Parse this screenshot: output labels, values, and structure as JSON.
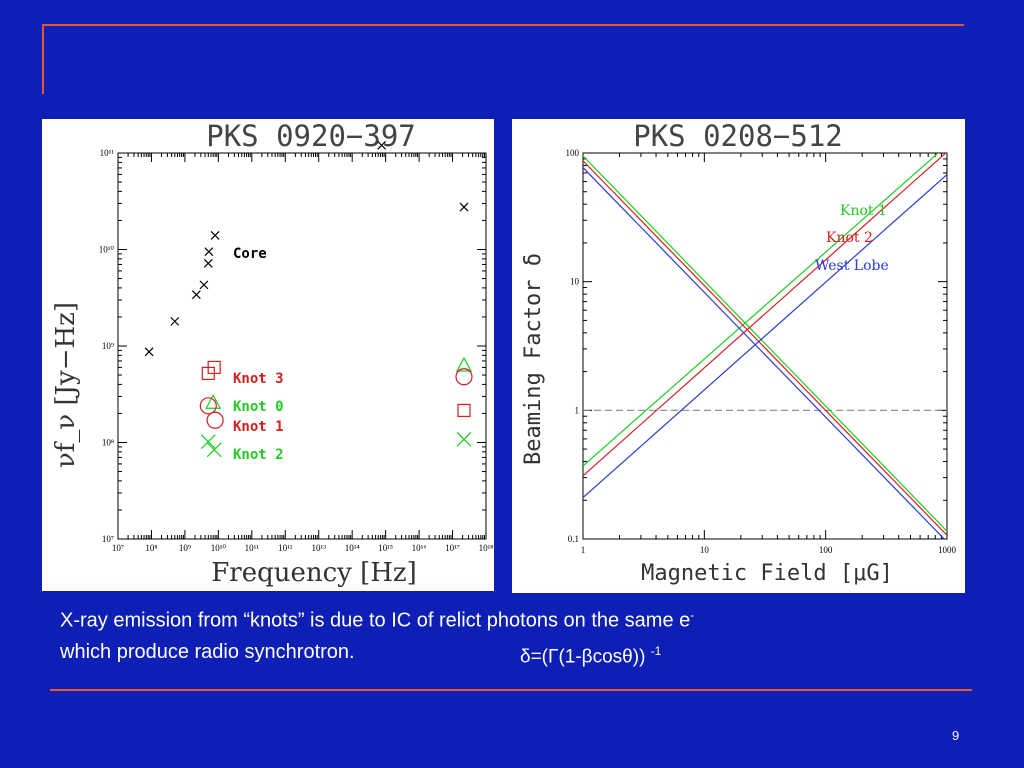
{
  "slide": {
    "caption_line1": "X-ray emission from “knots” is due to IC of relict photons on the same e",
    "caption_sup": "-",
    "caption_line2": "which produce radio synchrotron.",
    "formula": "δ=(Γ(1-βcosθ))",
    "formula_sup": "-1",
    "page_number": "9"
  },
  "colors": {
    "background": "#0d1fb5",
    "rule": "#e8552a",
    "red": "#d22020",
    "green": "#22cc22",
    "blue": "#2a3cd0"
  },
  "chart_data": [
    {
      "type": "scatter",
      "title": "PKS 0920−397",
      "xlabel": "Frequency [Hz]",
      "ylabel": "νf_ν [Jy−Hz]",
      "x_scale": "log",
      "y_scale": "log",
      "xlim": [
        10000000.0,
        1e+18
      ],
      "ylim": [
        10000000.0,
        100000000000.0
      ],
      "x_ticks": [
        "10⁷",
        "10⁸",
        "10⁹",
        "10¹⁰",
        "10¹¹",
        "10¹²",
        "10¹³",
        "10¹⁴",
        "10¹⁵",
        "10¹⁶",
        "10¹⁷",
        "10¹⁸"
      ],
      "y_ticks": [
        "10⁷",
        "10⁸",
        "10⁹",
        "10¹⁰",
        "10¹¹"
      ],
      "series": [
        {
          "name": "Core",
          "color": "#000000",
          "marker": "x",
          "points": [
            [
              85000000.0,
              870000000.0
            ],
            [
              500000000.0,
              1800000000.0
            ],
            [
              2200000000.0,
              3400000000.0
            ],
            [
              3700000000.0,
              4300000000.0
            ],
            [
              5000000000.0,
              7200000000.0
            ],
            [
              5200000000.0,
              9500000000.0
            ],
            [
              8000000000.0,
              14000000000.0
            ],
            [
              760000000000000.0,
              120000000000.0
            ],
            [
              2.2e+17,
              27500000000.0
            ]
          ]
        },
        {
          "name": "Knot 3",
          "color": "#d22020",
          "marker": "square",
          "points": [
            [
              5000000000.0,
              520000000.0
            ],
            [
              7500000000.0,
              600000000.0
            ],
            [
              2.2e+17,
              215000000.0
            ]
          ]
        },
        {
          "name": "Knot 0",
          "color": "#22cc22",
          "marker": "triangle",
          "points": [
            [
              7000000000.0,
              255000000.0
            ],
            [
              2.2e+17,
              620000000.0
            ]
          ]
        },
        {
          "name": "Knot 1",
          "color": "#d22020",
          "marker": "circle",
          "points": [
            [
              5000000000.0,
              240000000.0
            ],
            [
              8000000000.0,
              170000000.0
            ],
            [
              2.2e+17,
              480000000.0
            ]
          ]
        },
        {
          "name": "Knot 2",
          "color": "#22cc22",
          "marker": "x",
          "points": [
            [
              5000000000.0,
              102000000.0
            ],
            [
              7500000000.0,
              84000000.0
            ],
            [
              2.2e+17,
              108000000.0
            ]
          ]
        }
      ],
      "legend": {
        "placement": "inside-center",
        "entries": [
          "Core",
          "Knot 3",
          "Knot 0",
          "Knot 1",
          "Knot 2"
        ]
      }
    },
    {
      "type": "line",
      "title": "PKS 0208−512",
      "xlabel": "Magnetic Field [μG]",
      "ylabel": "Beaming Factor δ",
      "x_scale": "log",
      "y_scale": "log",
      "xlim": [
        1,
        1000
      ],
      "ylim": [
        0.1,
        100
      ],
      "x_ticks": [
        "1",
        "10",
        "100",
        "1000"
      ],
      "y_ticks": [
        "0.1",
        "1",
        "10",
        "100"
      ],
      "reference_line": {
        "y": 1,
        "style": "dashed"
      },
      "series": [
        {
          "name": "Knot 1",
          "color": "#22cc22",
          "lines": [
            [
              [
                1,
                0.37
              ],
              [
                1000,
                115
              ]
            ],
            [
              [
                1,
                95
              ],
              [
                1000,
                0.115
              ]
            ]
          ]
        },
        {
          "name": "Knot 2",
          "color": "#d22020",
          "lines": [
            [
              [
                1,
                0.31
              ],
              [
                1000,
                102
              ]
            ],
            [
              [
                1,
                87
              ],
              [
                1000,
                0.107
              ]
            ]
          ]
        },
        {
          "name": "West Lobe",
          "color": "#2a3cd0",
          "lines": [
            [
              [
                1,
                0.21
              ],
              [
                1000,
                68
              ]
            ],
            [
              [
                1,
                77
              ],
              [
                1000,
                0.095
              ]
            ]
          ]
        }
      ],
      "legend": {
        "placement": "top-right",
        "entries": [
          "Knot 1",
          "Knot 2",
          "West Lobe"
        ]
      }
    }
  ]
}
